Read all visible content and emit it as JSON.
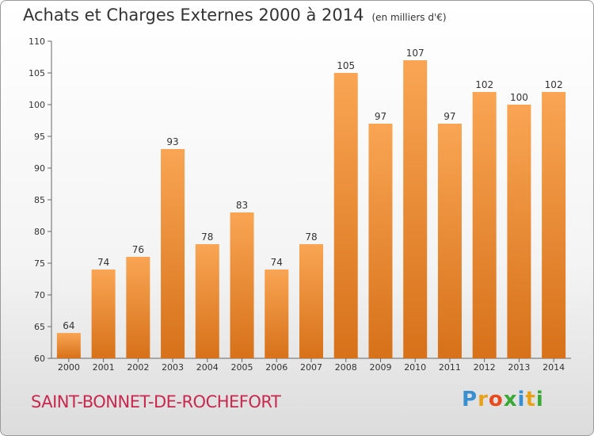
{
  "chart_data": {
    "type": "bar",
    "title": "Achats et Charges Externes 2000 à 2014",
    "subtitle": "(en milliers d'€)",
    "categories": [
      "2000",
      "2001",
      "2002",
      "2003",
      "2004",
      "2005",
      "2006",
      "2007",
      "2008",
      "2009",
      "2010",
      "2011",
      "2012",
      "2013",
      "2014"
    ],
    "values": [
      64,
      74,
      76,
      93,
      78,
      83,
      74,
      78,
      105,
      97,
      107,
      97,
      102,
      100,
      102
    ],
    "ylim": [
      60,
      110
    ],
    "yticks": [
      60,
      65,
      70,
      75,
      80,
      85,
      90,
      95,
      100,
      105,
      110
    ],
    "xlabel": "",
    "ylabel": "",
    "grid": false,
    "bar_color_top": "#f9a553",
    "bar_color_bottom": "#d7711a"
  },
  "footer": {
    "place": "SAINT-BONNET-DE-ROCHEFORT",
    "place_color": "#c8284e"
  },
  "logo": {
    "text": "Proxiti",
    "letter_colors": [
      "#3a8fd1",
      "#e8a21a",
      "#e8491d",
      "#39a935",
      "#3a8fd1",
      "#e8a21a",
      "#39a935"
    ]
  }
}
